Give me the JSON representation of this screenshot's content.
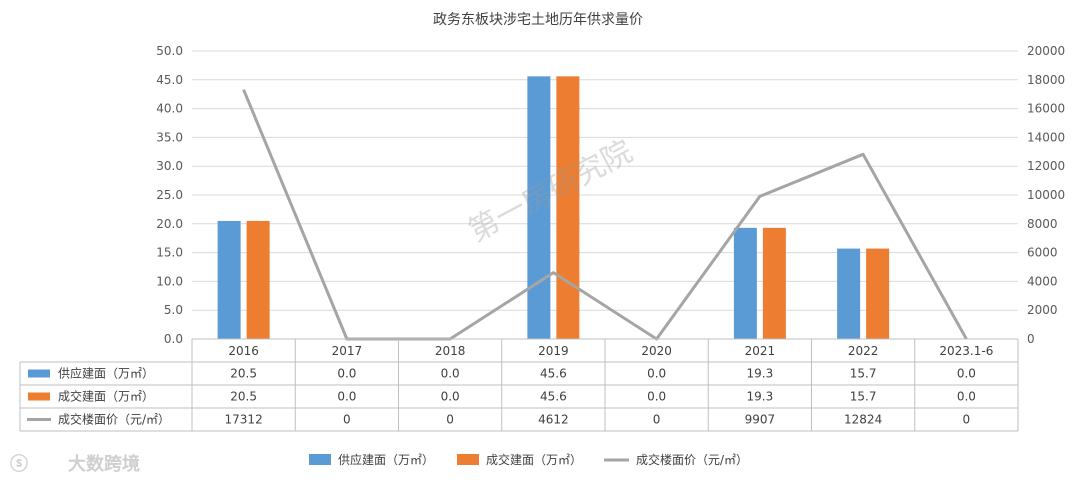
{
  "chart_data": {
    "type": "bar",
    "title": "政务东板块涉宅土地历年供求量价",
    "categories": [
      "2016",
      "2017",
      "2018",
      "2019",
      "2020",
      "2021",
      "2022",
      "2023.1-6"
    ],
    "series": [
      {
        "name": "供应建面（万㎡）",
        "type": "bar",
        "axis": "left",
        "color": "#5b9bd5",
        "values": [
          20.5,
          0.0,
          0.0,
          45.6,
          0.0,
          19.3,
          15.7,
          0.0
        ],
        "labels": [
          "20.5",
          "0.0",
          "0.0",
          "45.6",
          "0.0",
          "19.3",
          "15.7",
          "0.0"
        ]
      },
      {
        "name": "成交建面（万㎡）",
        "type": "bar",
        "axis": "left",
        "color": "#ed7d31",
        "values": [
          20.5,
          0.0,
          0.0,
          45.6,
          0.0,
          19.3,
          15.7,
          0.0
        ],
        "labels": [
          "20.5",
          "0.0",
          "0.0",
          "45.6",
          "0.0",
          "19.3",
          "15.7",
          "0.0"
        ]
      },
      {
        "name": "成交楼面价（元/㎡）",
        "type": "line",
        "axis": "right",
        "color": "#a5a5a5",
        "values": [
          17312,
          0,
          0,
          4612,
          0,
          9907,
          12824,
          0
        ],
        "labels": [
          "17312",
          "0",
          "0",
          "4612",
          "0",
          "9907",
          "12824",
          "0"
        ]
      }
    ],
    "y_left": {
      "min": 0,
      "max": 50,
      "step": 5,
      "ticks": [
        "0.0",
        "5.0",
        "10.0",
        "15.0",
        "20.0",
        "25.0",
        "30.0",
        "35.0",
        "40.0",
        "45.0",
        "50.0"
      ]
    },
    "y_right": {
      "min": 0,
      "max": 20000,
      "step": 2000,
      "ticks": [
        "0",
        "2000",
        "4000",
        "6000",
        "8000",
        "10000",
        "12000",
        "14000",
        "16000",
        "18000",
        "20000"
      ]
    },
    "grid": true,
    "legend_position": "bottom",
    "data_table": true
  },
  "watermark": "第一房研究院",
  "logo": "大数跨境"
}
